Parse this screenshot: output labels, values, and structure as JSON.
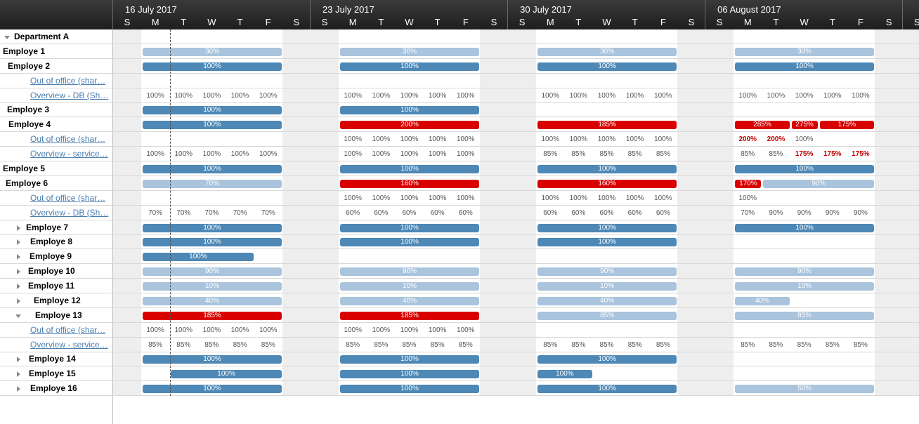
{
  "weeks": [
    "16 July 2017",
    "23 July 2017",
    "30 July 2017",
    "06 August 2017",
    ""
  ],
  "days": [
    "S",
    "M",
    "T",
    "W",
    "T",
    "F",
    "S"
  ],
  "colors": {
    "dark": "#4d88b6",
    "light": "#a9c4dc",
    "red": "#d90000"
  },
  "rows": [
    {
      "kind": "group",
      "label": "Department A",
      "expanded": true,
      "bars": [],
      "cells": []
    },
    {
      "kind": "emp",
      "label": "Employe  1",
      "bars": [
        {
          "w": 0,
          "d": 1,
          "n": 5,
          "t": "30%",
          "c": "light"
        },
        {
          "w": 1,
          "d": 1,
          "n": 5,
          "t": "30%",
          "c": "light"
        },
        {
          "w": 2,
          "d": 1,
          "n": 5,
          "t": "30%",
          "c": "light"
        },
        {
          "w": 3,
          "d": 1,
          "n": 5,
          "t": "30%",
          "c": "light"
        }
      ]
    },
    {
      "kind": "emp",
      "label": "Employe  2",
      "bars": [
        {
          "w": 0,
          "d": 1,
          "n": 5,
          "t": "100%",
          "c": "dark"
        },
        {
          "w": 1,
          "d": 1,
          "n": 5,
          "t": "100%",
          "c": "dark"
        },
        {
          "w": 2,
          "d": 1,
          "n": 5,
          "t": "100%",
          "c": "dark"
        },
        {
          "w": 3,
          "d": 1,
          "n": 5,
          "t": "100%",
          "c": "dark"
        }
      ]
    },
    {
      "kind": "link",
      "label": "Out of office (shar…",
      "cells": []
    },
    {
      "kind": "link",
      "label": "Overview - DB (Sh…",
      "cells": [
        {
          "w": 0,
          "d": 1,
          "v": [
            "100%",
            "100%",
            "100%",
            "100%",
            "100%"
          ]
        },
        {
          "w": 1,
          "d": 1,
          "v": [
            "100%",
            "100%",
            "100%",
            "100%",
            "100%"
          ]
        },
        {
          "w": 2,
          "d": 1,
          "v": [
            "100%",
            "100%",
            "100%",
            "100%",
            "100%"
          ]
        },
        {
          "w": 3,
          "d": 1,
          "v": [
            "100%",
            "100%",
            "100%",
            "100%",
            "100%"
          ]
        }
      ]
    },
    {
      "kind": "emp",
      "label": "Employe 3",
      "bars": [
        {
          "w": 0,
          "d": 1,
          "n": 5,
          "t": "100%",
          "c": "dark"
        },
        {
          "w": 1,
          "d": 1,
          "n": 5,
          "t": "100%",
          "c": "dark"
        }
      ]
    },
    {
      "kind": "emp",
      "label": "Employe 4",
      "bars": [
        {
          "w": 0,
          "d": 1,
          "n": 5,
          "t": "100%",
          "c": "dark"
        },
        {
          "w": 1,
          "d": 1,
          "n": 5,
          "t": "200%",
          "c": "red"
        },
        {
          "w": 2,
          "d": 1,
          "n": 5,
          "t": "185%",
          "c": "red"
        },
        {
          "w": 3,
          "d": 1,
          "n": 2,
          "t": "285%",
          "c": "red"
        },
        {
          "w": 3,
          "d": 3,
          "n": 1,
          "t": "275%",
          "c": "red"
        },
        {
          "w": 3,
          "d": 4,
          "n": 2,
          "t": "175%",
          "c": "red"
        }
      ]
    },
    {
      "kind": "link",
      "label": "Out of office (shar…",
      "cells": [
        {
          "w": 1,
          "d": 1,
          "v": [
            "100%",
            "100%",
            "100%",
            "100%",
            "100%"
          ]
        },
        {
          "w": 2,
          "d": 1,
          "v": [
            "100%",
            "100%",
            "100%",
            "100%",
            "100%"
          ]
        },
        {
          "w": 3,
          "d": 1,
          "v": [
            "200%",
            "200%",
            "100%"
          ],
          "red": [
            0,
            1
          ]
        }
      ]
    },
    {
      "kind": "link",
      "label": "Overview - service…",
      "cells": [
        {
          "w": 0,
          "d": 1,
          "v": [
            "100%",
            "100%",
            "100%",
            "100%",
            "100%"
          ]
        },
        {
          "w": 1,
          "d": 1,
          "v": [
            "100%",
            "100%",
            "100%",
            "100%",
            "100%"
          ]
        },
        {
          "w": 2,
          "d": 1,
          "v": [
            "85%",
            "85%",
            "85%",
            "85%",
            "85%"
          ]
        },
        {
          "w": 3,
          "d": 1,
          "v": [
            "85%",
            "85%",
            "175%",
            "175%",
            "175%"
          ],
          "red": [
            2,
            3,
            4
          ]
        }
      ]
    },
    {
      "kind": "emp",
      "label": "Employe 5",
      "bars": [
        {
          "w": 0,
          "d": 1,
          "n": 5,
          "t": "100%",
          "c": "dark"
        },
        {
          "w": 1,
          "d": 1,
          "n": 5,
          "t": "100%",
          "c": "dark"
        },
        {
          "w": 2,
          "d": 1,
          "n": 5,
          "t": "100%",
          "c": "dark"
        },
        {
          "w": 3,
          "d": 1,
          "n": 5,
          "t": "100%",
          "c": "dark"
        }
      ]
    },
    {
      "kind": "emp",
      "label": "Employe 6",
      "bars": [
        {
          "w": 0,
          "d": 1,
          "n": 5,
          "t": "70%",
          "c": "light"
        },
        {
          "w": 1,
          "d": 1,
          "n": 5,
          "t": "160%",
          "c": "red"
        },
        {
          "w": 2,
          "d": 1,
          "n": 5,
          "t": "160%",
          "c": "red"
        },
        {
          "w": 3,
          "d": 1,
          "n": 1,
          "t": "170%",
          "c": "red"
        },
        {
          "w": 3,
          "d": 2,
          "n": 4,
          "t": "90%",
          "c": "light"
        }
      ]
    },
    {
      "kind": "link",
      "label": "Out of office (shar…",
      "cells": [
        {
          "w": 1,
          "d": 1,
          "v": [
            "100%",
            "100%",
            "100%",
            "100%",
            "100%"
          ]
        },
        {
          "w": 2,
          "d": 1,
          "v": [
            "100%",
            "100%",
            "100%",
            "100%",
            "100%"
          ]
        },
        {
          "w": 3,
          "d": 1,
          "v": [
            "100%"
          ]
        }
      ]
    },
    {
      "kind": "link",
      "label": "Overview - DB (Sh…",
      "cells": [
        {
          "w": 0,
          "d": 1,
          "v": [
            "70%",
            "70%",
            "70%",
            "70%",
            "70%"
          ]
        },
        {
          "w": 1,
          "d": 1,
          "v": [
            "60%",
            "60%",
            "60%",
            "60%",
            "60%"
          ]
        },
        {
          "w": 2,
          "d": 1,
          "v": [
            "60%",
            "60%",
            "60%",
            "60%",
            "60%"
          ]
        },
        {
          "w": 3,
          "d": 1,
          "v": [
            "70%",
            "90%",
            "90%",
            "90%",
            "90%"
          ]
        }
      ]
    },
    {
      "kind": "emp",
      "label": "Employe 7",
      "expand": "right",
      "bars": [
        {
          "w": 0,
          "d": 1,
          "n": 5,
          "t": "100%",
          "c": "dark"
        },
        {
          "w": 1,
          "d": 1,
          "n": 5,
          "t": "100%",
          "c": "dark"
        },
        {
          "w": 2,
          "d": 1,
          "n": 5,
          "t": "100%",
          "c": "dark"
        },
        {
          "w": 3,
          "d": 1,
          "n": 5,
          "t": "100%",
          "c": "dark"
        }
      ]
    },
    {
      "kind": "emp",
      "label": "Employe  8",
      "expand": "right",
      "bars": [
        {
          "w": 0,
          "d": 1,
          "n": 5,
          "t": "100%",
          "c": "dark"
        },
        {
          "w": 1,
          "d": 1,
          "n": 5,
          "t": "100%",
          "c": "dark"
        },
        {
          "w": 2,
          "d": 1,
          "n": 5,
          "t": "100%",
          "c": "dark"
        }
      ]
    },
    {
      "kind": "emp",
      "label": "Employe 9",
      "expand": "right",
      "bars": [
        {
          "w": 0,
          "d": 1,
          "n": 4,
          "t": "100%",
          "c": "dark"
        }
      ]
    },
    {
      "kind": "emp",
      "label": "Employe 10",
      "expand": "right",
      "bars": [
        {
          "w": 0,
          "d": 1,
          "n": 5,
          "t": "90%",
          "c": "light"
        },
        {
          "w": 1,
          "d": 1,
          "n": 5,
          "t": "90%",
          "c": "light"
        },
        {
          "w": 2,
          "d": 1,
          "n": 5,
          "t": "90%",
          "c": "light"
        },
        {
          "w": 3,
          "d": 1,
          "n": 5,
          "t": "90%",
          "c": "light"
        }
      ]
    },
    {
      "kind": "emp",
      "label": "Employe 11",
      "expand": "right",
      "bars": [
        {
          "w": 0,
          "d": 1,
          "n": 5,
          "t": "10%",
          "c": "light"
        },
        {
          "w": 1,
          "d": 1,
          "n": 5,
          "t": "10%",
          "c": "light"
        },
        {
          "w": 2,
          "d": 1,
          "n": 5,
          "t": "10%",
          "c": "light"
        },
        {
          "w": 3,
          "d": 1,
          "n": 5,
          "t": "10%",
          "c": "light"
        }
      ]
    },
    {
      "kind": "emp",
      "label": "Employe 12",
      "expand": "right",
      "bars": [
        {
          "w": 0,
          "d": 1,
          "n": 5,
          "t": "40%",
          "c": "light"
        },
        {
          "w": 1,
          "d": 1,
          "n": 5,
          "t": "40%",
          "c": "light"
        },
        {
          "w": 2,
          "d": 1,
          "n": 5,
          "t": "40%",
          "c": "light"
        },
        {
          "w": 3,
          "d": 1,
          "n": 2,
          "t": "40%",
          "c": "light"
        }
      ]
    },
    {
      "kind": "emp",
      "label": "Employe 13",
      "expand": "down",
      "bars": [
        {
          "w": 0,
          "d": 1,
          "n": 5,
          "t": "185%",
          "c": "red"
        },
        {
          "w": 1,
          "d": 1,
          "n": 5,
          "t": "185%",
          "c": "red"
        },
        {
          "w": 2,
          "d": 1,
          "n": 5,
          "t": "85%",
          "c": "light"
        },
        {
          "w": 3,
          "d": 1,
          "n": 5,
          "t": "85%",
          "c": "light"
        }
      ]
    },
    {
      "kind": "link",
      "label": "Out of office (shar…",
      "cells": [
        {
          "w": 0,
          "d": 1,
          "v": [
            "100%",
            "100%",
            "100%",
            "100%",
            "100%"
          ]
        },
        {
          "w": 1,
          "d": 1,
          "v": [
            "100%",
            "100%",
            "100%",
            "100%",
            "100%"
          ]
        }
      ]
    },
    {
      "kind": "link",
      "label": "Overview - service…",
      "cells": [
        {
          "w": 0,
          "d": 1,
          "v": [
            "85%",
            "85%",
            "85%",
            "85%",
            "85%"
          ]
        },
        {
          "w": 1,
          "d": 1,
          "v": [
            "85%",
            "85%",
            "85%",
            "85%",
            "85%"
          ]
        },
        {
          "w": 2,
          "d": 1,
          "v": [
            "85%",
            "85%",
            "85%",
            "85%",
            "85%"
          ]
        },
        {
          "w": 3,
          "d": 1,
          "v": [
            "85%",
            "85%",
            "85%",
            "85%",
            "85%"
          ]
        }
      ]
    },
    {
      "kind": "emp",
      "label": "Employe  14",
      "expand": "right",
      "bars": [
        {
          "w": 0,
          "d": 1,
          "n": 5,
          "t": "100%",
          "c": "dark"
        },
        {
          "w": 1,
          "d": 1,
          "n": 5,
          "t": "100%",
          "c": "dark"
        },
        {
          "w": 2,
          "d": 1,
          "n": 5,
          "t": "100%",
          "c": "dark"
        }
      ]
    },
    {
      "kind": "emp",
      "label": "Employe 15",
      "expand": "right",
      "bars": [
        {
          "w": 0,
          "d": 2,
          "n": 4,
          "t": "100%",
          "c": "dark"
        },
        {
          "w": 1,
          "d": 1,
          "n": 5,
          "t": "100%",
          "c": "dark"
        },
        {
          "w": 2,
          "d": 1,
          "n": 2,
          "t": "100%",
          "c": "dark"
        }
      ]
    },
    {
      "kind": "emp",
      "label": "Employe 16",
      "expand": "right",
      "bars": [
        {
          "w": 0,
          "d": 1,
          "n": 5,
          "t": "100%",
          "c": "dark"
        },
        {
          "w": 1,
          "d": 1,
          "n": 5,
          "t": "100%",
          "c": "dark"
        },
        {
          "w": 2,
          "d": 1,
          "n": 5,
          "t": "100%",
          "c": "dark"
        },
        {
          "w": 3,
          "d": 1,
          "n": 5,
          "t": "50%",
          "c": "light"
        }
      ]
    }
  ]
}
